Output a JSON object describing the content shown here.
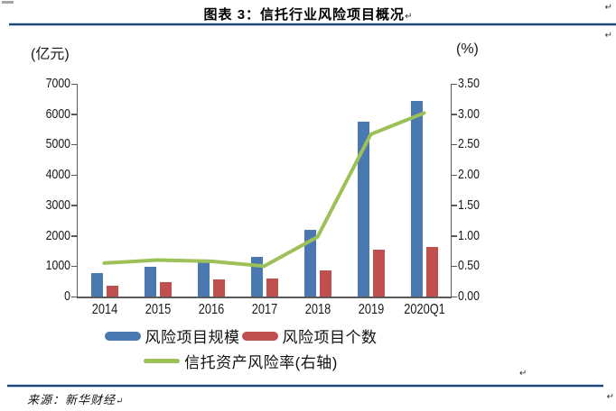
{
  "page": {
    "title": "图表 3：信托行业风险项目概况",
    "source_label": "来源：新华财经",
    "paragraph_mark": "↵",
    "rule_color": "#21486f"
  },
  "chart_data": {
    "type": "bar",
    "title": "图表 3：信托行业风险项目概况",
    "categories": [
      "2014",
      "2015",
      "2016",
      "2017",
      "2018",
      "2019",
      "2020Q1"
    ],
    "series": [
      {
        "name": "风险项目规模",
        "type": "bar",
        "axis": "left",
        "color": "#4a79b2",
        "values": [
          780,
          970,
          1130,
          1300,
          2200,
          5750,
          6430
        ]
      },
      {
        "name": "风险项目个数",
        "type": "bar",
        "axis": "left",
        "color": "#c0504d",
        "values": [
          370,
          460,
          550,
          600,
          870,
          1550,
          1620
        ]
      },
      {
        "name": "信托资产风险率(右轴)",
        "type": "line",
        "axis": "right",
        "color": "#9dc058",
        "values": [
          0.55,
          0.6,
          0.58,
          0.5,
          0.98,
          2.67,
          3.02
        ]
      }
    ],
    "left_axis": {
      "unit": "(亿元)",
      "min": 0,
      "max": 7000,
      "step": 1000,
      "ticks": [
        "7000",
        "6000",
        "5000",
        "4000",
        "3000",
        "2000",
        "1000",
        "0"
      ]
    },
    "right_axis": {
      "unit": "(%)",
      "min": 0,
      "max": 3.5,
      "step": 0.5,
      "ticks": [
        "3.50",
        "3.00",
        "2.50",
        "2.00",
        "1.50",
        "1.00",
        "0.50",
        "0.00"
      ]
    },
    "grid": false,
    "legend_position": "bottom",
    "axis_color": "#595959"
  }
}
